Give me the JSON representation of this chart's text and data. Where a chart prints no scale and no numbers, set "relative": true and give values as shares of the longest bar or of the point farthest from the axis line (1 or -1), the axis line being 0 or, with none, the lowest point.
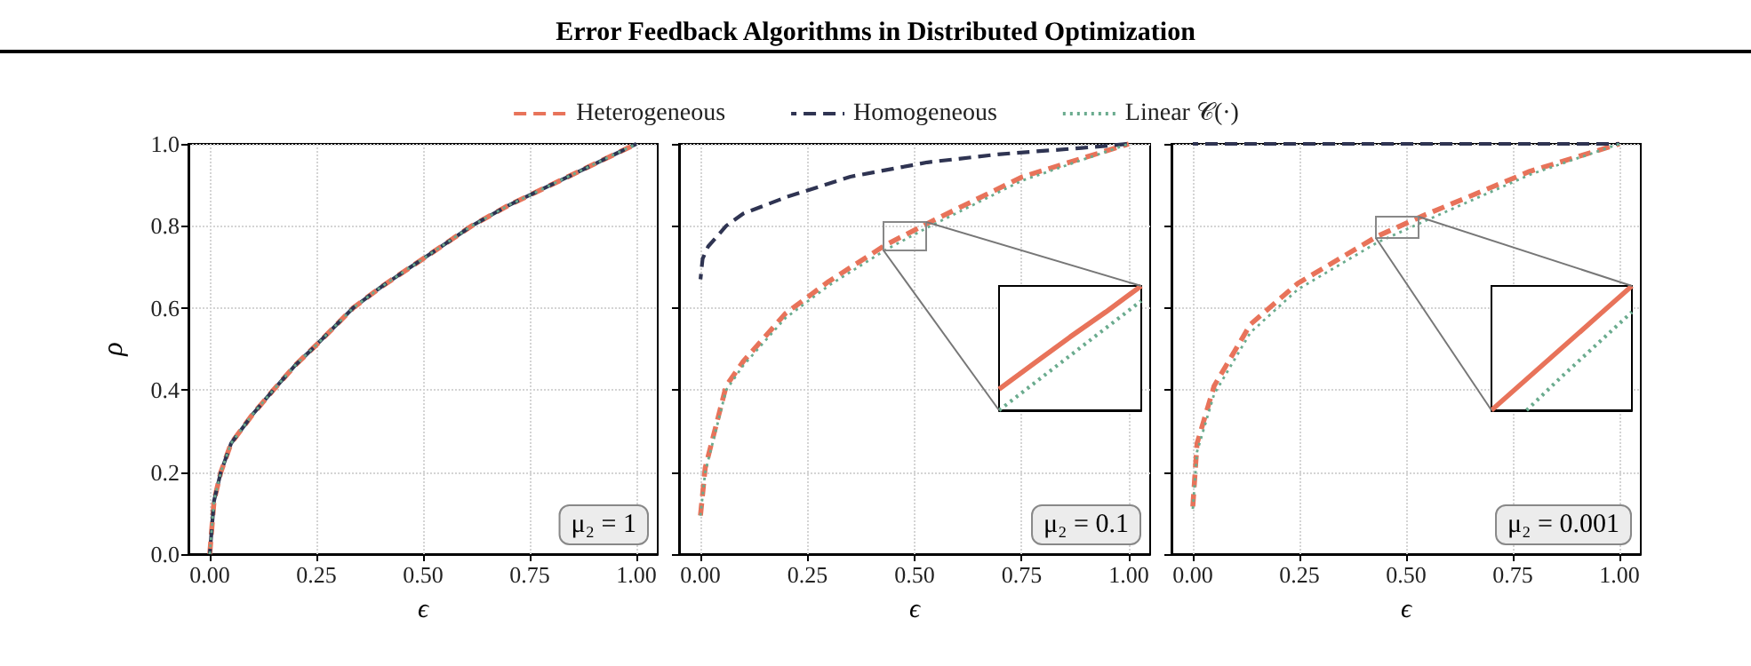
{
  "chart_data": [
    {
      "type": "line",
      "title": "Error Feedback Algorithms in Distributed Optimization",
      "xlabel": "ϵ",
      "ylabel": "ρ",
      "xlim": [
        -0.05,
        1.05
      ],
      "xticks": [
        {
          "value": 0,
          "label": "0.00"
        },
        {
          "value": 0.25,
          "label": "0.25"
        },
        {
          "value": 0.5,
          "label": "0.50"
        },
        {
          "value": 0.75,
          "label": "0.75"
        },
        {
          "value": 1,
          "label": "1.00"
        }
      ],
      "ylim": [
        0,
        1
      ],
      "yticks": [
        {
          "value": 0,
          "label": "0.0"
        },
        {
          "value": 0.2,
          "label": "0.2"
        },
        {
          "value": 0.4,
          "label": "0.4"
        },
        {
          "value": 0.6,
          "label": "0.6"
        },
        {
          "value": 0.8,
          "label": "0.8"
        },
        {
          "value": 1,
          "label": "1.0"
        }
      ],
      "grid": true,
      "legend": "top",
      "marker": "none",
      "annotations": [
        "μ₂ = 1"
      ],
      "series": [
        {
          "name": "Heterogeneous",
          "color": "#e8735a",
          "line_style": "dashed",
          "x": [
            0,
            0.01,
            0.026,
            0.05,
            0.1,
            0.149,
            0.2,
            0.25,
            0.336,
            0.4,
            0.5,
            0.614,
            0.7,
            0.8,
            0.9,
            1.0
          ],
          "values": [
            0,
            0.13,
            0.2,
            0.27,
            0.34,
            0.4,
            0.46,
            0.51,
            0.6,
            0.65,
            0.72,
            0.8,
            0.85,
            0.9,
            0.95,
            1.0
          ]
        },
        {
          "name": "Homogeneous",
          "color": "#2f3452",
          "line_style": "dashed",
          "x": [
            0,
            0.01,
            0.026,
            0.05,
            0.1,
            0.149,
            0.2,
            0.25,
            0.336,
            0.4,
            0.5,
            0.614,
            0.7,
            0.8,
            0.9,
            1.0
          ],
          "values": [
            0,
            0.13,
            0.2,
            0.27,
            0.34,
            0.4,
            0.46,
            0.51,
            0.6,
            0.65,
            0.72,
            0.8,
            0.85,
            0.9,
            0.95,
            1.0
          ]
        },
        {
          "name": "Linear 𝒞(·)",
          "color": "#6aab8e",
          "line_style": "dotted",
          "x": [
            0,
            0.01,
            0.026,
            0.05,
            0.1,
            0.149,
            0.2,
            0.25,
            0.336,
            0.4,
            0.5,
            0.614,
            0.7,
            0.8,
            0.9,
            1.0
          ],
          "values": [
            0,
            0.13,
            0.2,
            0.27,
            0.34,
            0.4,
            0.46,
            0.51,
            0.6,
            0.65,
            0.72,
            0.8,
            0.85,
            0.9,
            0.95,
            1.0
          ]
        }
      ]
    },
    {
      "type": "line",
      "xlabel": "ϵ",
      "xlim": [
        -0.05,
        1.05
      ],
      "xticks": [
        {
          "value": 0,
          "label": "0.00"
        },
        {
          "value": 0.25,
          "label": "0.25"
        },
        {
          "value": 0.5,
          "label": "0.50"
        },
        {
          "value": 0.75,
          "label": "0.75"
        },
        {
          "value": 1,
          "label": "1.00"
        }
      ],
      "ylim": [
        0,
        1
      ],
      "yticks": [
        {
          "value": 0,
          "label": null
        },
        {
          "value": 0.2,
          "label": null
        },
        {
          "value": 0.4,
          "label": null
        },
        {
          "value": 0.6,
          "label": null
        },
        {
          "value": 0.8,
          "label": null
        },
        {
          "value": 1,
          "label": null
        }
      ],
      "tick_labels": "x",
      "grid": true,
      "marker": "none",
      "annotations": [
        "μ₂ = 0.1"
      ],
      "series": [
        {
          "color": "#e8735a",
          "line_style": "dashed",
          "x": [
            0,
            0.011,
            0.06,
            0.1,
            0.198,
            0.3,
            0.433,
            0.53,
            0.75,
            1.0
          ],
          "values": [
            0.094,
            0.21,
            0.41,
            0.47,
            0.586,
            0.665,
            0.754,
            0.806,
            0.919,
            1.0
          ]
        },
        {
          "color": "#2f3452",
          "line_style": "dashed",
          "x": [
            0,
            0.005,
            0.018,
            0.06,
            0.1,
            0.2,
            0.35,
            0.53,
            0.7,
            0.89,
            1.0
          ],
          "values": [
            0.67,
            0.72,
            0.75,
            0.8,
            0.83,
            0.87,
            0.92,
            0.955,
            0.975,
            0.99,
            1.0
          ]
        },
        {
          "color": "#6aab8e",
          "line_style": "dotted",
          "x": [
            0,
            0.011,
            0.06,
            0.1,
            0.198,
            0.3,
            0.433,
            0.53,
            0.75,
            1.0
          ],
          "values": [
            0.094,
            0.2,
            0.4,
            0.46,
            0.575,
            0.655,
            0.742,
            0.796,
            0.91,
            1.0
          ]
        }
      ]
    },
    {
      "type": "line",
      "xlabel": "ϵ",
      "xlim": [
        -0.05,
        1.05
      ],
      "xticks": [
        {
          "value": 0,
          "label": "0.00"
        },
        {
          "value": 0.25,
          "label": "0.25"
        },
        {
          "value": 0.5,
          "label": "0.50"
        },
        {
          "value": 0.75,
          "label": "0.75"
        },
        {
          "value": 1,
          "label": "1.00"
        }
      ],
      "ylim": [
        0,
        1
      ],
      "yticks": [
        {
          "value": 0,
          "label": null
        },
        {
          "value": 0.2,
          "label": null
        },
        {
          "value": 0.4,
          "label": null
        },
        {
          "value": 0.6,
          "label": null
        },
        {
          "value": 0.8,
          "label": null
        },
        {
          "value": 1,
          "label": null
        }
      ],
      "tick_labels": "x",
      "grid": true,
      "marker": "none",
      "annotations": [
        "μ₂ = 0.001"
      ],
      "series": [
        {
          "color": "#e8735a",
          "line_style": "dashed",
          "x": [
            0,
            0.01,
            0.05,
            0.135,
            0.246,
            0.433,
            0.54,
            0.79,
            1.0
          ],
          "values": [
            0.116,
            0.27,
            0.41,
            0.56,
            0.66,
            0.775,
            0.825,
            0.933,
            1.0
          ]
        },
        {
          "color": "#2f3452",
          "line_style": "dashed",
          "x": [
            0,
            1.0
          ],
          "values": [
            1.0,
            1.0
          ]
        },
        {
          "color": "#6aab8e",
          "line_style": "dotted",
          "x": [
            0,
            0.01,
            0.05,
            0.135,
            0.246,
            0.433,
            0.54,
            0.79,
            1.0
          ],
          "values": [
            0.11,
            0.25,
            0.39,
            0.54,
            0.645,
            0.76,
            0.81,
            0.925,
            1.0
          ]
        }
      ]
    },
    {
      "type": "line",
      "categories": [
        null,
        null,
        null,
        null,
        null
      ],
      "relative": true,
      "tick_labels": false,
      "marker": "none",
      "series": [
        {
          "color": "#e8735a",
          "line_style": "solid",
          "values": [
            0.17,
            0.38,
            0.59,
            0.79,
            1.0
          ]
        },
        {
          "color": "#6aab8e",
          "line_style": "dotted",
          "values": [
            0,
            0.22,
            0.44,
            0.66,
            0.88
          ]
        }
      ]
    },
    {
      "type": "line",
      "categories": [
        null,
        null,
        null,
        null,
        null
      ],
      "relative": true,
      "tick_labels": false,
      "marker": "none",
      "series": [
        {
          "color": "#e8735a",
          "line_style": "solid",
          "values": [
            0,
            0.25,
            0.5,
            0.75,
            1.0
          ]
        },
        {
          "color": "#6aab8e",
          "line_style": "dotted",
          "values": [
            null,
            0,
            0.27,
            0.53,
            0.79
          ]
        }
      ]
    }
  ]
}
